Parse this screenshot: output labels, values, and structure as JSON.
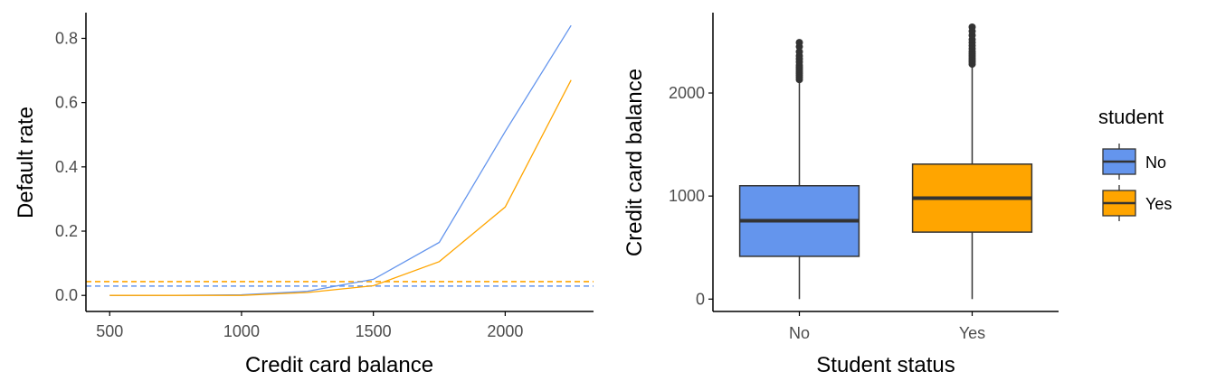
{
  "colors": {
    "no": "#6495ED",
    "yes": "#FFA500",
    "axis": "#000000",
    "box_line": "#333333"
  },
  "chart_data": [
    {
      "type": "line",
      "xlabel": "Credit card balance",
      "ylabel": "Default rate",
      "xlim": [
        410,
        2335
      ],
      "ylim": [
        -0.05,
        0.88
      ],
      "xticks": [
        500,
        1000,
        1500,
        2000
      ],
      "yticks": [
        0.0,
        0.2,
        0.4,
        0.6,
        0.8
      ],
      "x_tick_labels": [
        "500",
        "1000",
        "1500",
        "2000"
      ],
      "y_tick_labels": [
        "0.0",
        "0.2",
        "0.4",
        "0.6",
        "0.8"
      ],
      "grid": false,
      "series": [
        {
          "key": "No",
          "color": "#6495ED",
          "x": [
            500,
            750,
            1000,
            1250,
            1500,
            1750,
            2000,
            2250
          ],
          "y": [
            0.0,
            0.0,
            0.002,
            0.013,
            0.05,
            0.165,
            0.51,
            0.84
          ]
        },
        {
          "key": "Yes",
          "color": "#FFA500",
          "x": [
            500,
            750,
            1000,
            1250,
            1500,
            1750,
            2000,
            2250
          ],
          "y": [
            0.0,
            0.0,
            0.0,
            0.009,
            0.03,
            0.105,
            0.275,
            0.67
          ]
        }
      ],
      "reference_lines": [
        {
          "key": "No",
          "y": 0.029,
          "color": "#6495ED",
          "style": "dashed"
        },
        {
          "key": "Yes",
          "y": 0.043,
          "color": "#FFA500",
          "style": "dashed"
        }
      ]
    },
    {
      "type": "box",
      "xlabel": "Student status",
      "ylabel": "Credit card balance",
      "categories": [
        "No",
        "Yes"
      ],
      "ylim": [
        -120,
        2780
      ],
      "yticks": [
        0,
        1000,
        2000
      ],
      "y_tick_labels": [
        "0",
        "1000",
        "2000"
      ],
      "grid": false,
      "boxes": [
        {
          "category": "No",
          "color": "#6495ED",
          "min": 0,
          "q1": 415,
          "median": 760,
          "q3": 1100,
          "whisker_high": 2120,
          "outliers": [
            2130,
            2150,
            2170,
            2190,
            2210,
            2230,
            2250,
            2270,
            2300,
            2330,
            2360,
            2400,
            2450,
            2490
          ]
        },
        {
          "category": "Yes",
          "color": "#FFA500",
          "min": 0,
          "q1": 650,
          "median": 980,
          "q3": 1310,
          "whisker_high": 2270,
          "outliers": [
            2280,
            2300,
            2320,
            2340,
            2360,
            2380,
            2400,
            2430,
            2460,
            2490,
            2520,
            2560,
            2600,
            2640
          ]
        }
      ],
      "legend": {
        "title": "student",
        "position": "right",
        "entries": [
          {
            "label": "No",
            "color": "#6495ED"
          },
          {
            "label": "Yes",
            "color": "#FFA500"
          }
        ]
      }
    }
  ]
}
